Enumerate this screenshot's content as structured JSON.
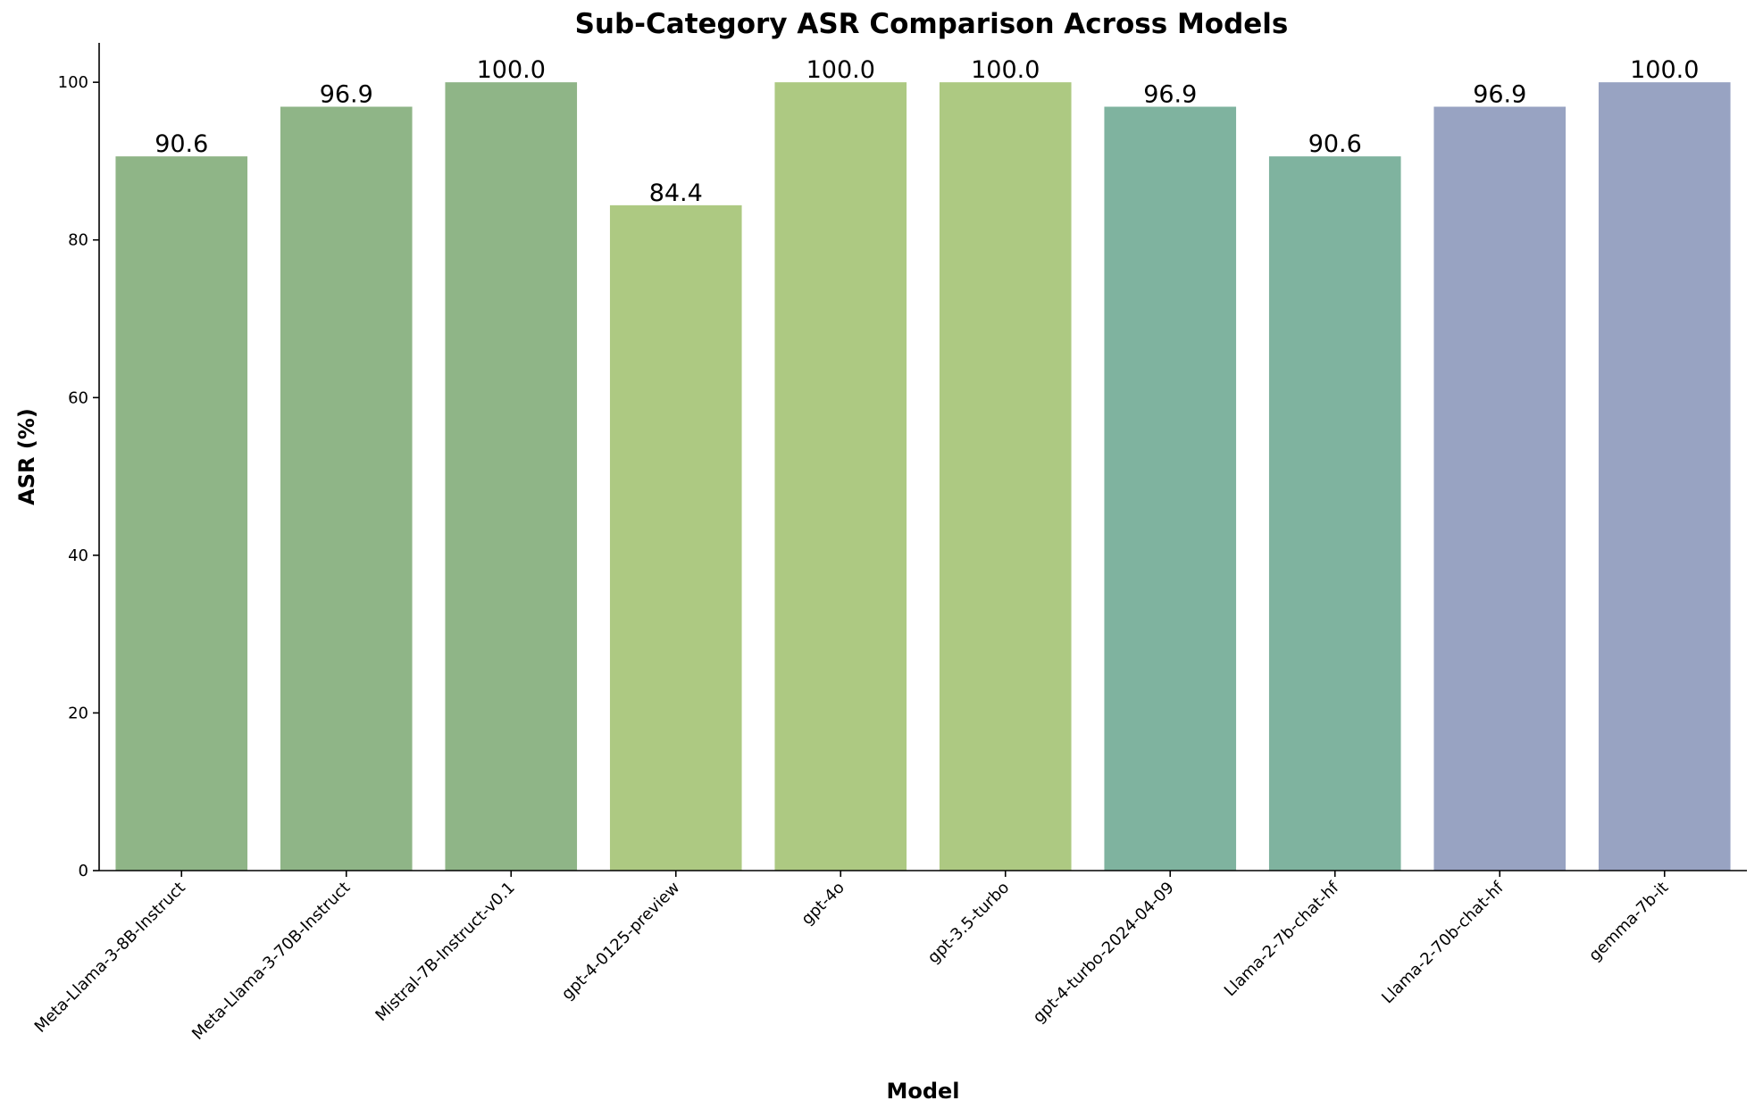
{
  "chart_data": {
    "type": "bar",
    "title": "Sub-Category ASR Comparison Across Models",
    "xlabel": "Model",
    "ylabel": "ASR (%)",
    "ylim": [
      0,
      105
    ],
    "yticks": [
      0,
      20,
      40,
      60,
      80,
      100
    ],
    "grid": false,
    "legend": "none",
    "categories": [
      "Meta-Llama-3-8B-Instruct",
      "Meta-Llama-3-70B-Instruct",
      "Mistral-7B-Instruct-v0.1",
      "gpt-4-0125-preview",
      "gpt-4o",
      "gpt-3.5-turbo",
      "gpt-4-turbo-2024-04-09",
      "Llama-2-7b-chat-hf",
      "Llama-2-70b-chat-hf",
      "gemma-7b-it"
    ],
    "values": [
      90.6,
      96.9,
      100.0,
      84.4,
      100.0,
      100.0,
      96.9,
      90.6,
      96.9,
      100.0
    ],
    "data_labels": [
      "90.6",
      "96.9",
      "100.0",
      "84.4",
      "100.0",
      "100.0",
      "96.9",
      "90.6",
      "96.9",
      "100.0"
    ],
    "colors": [
      "#8fb587",
      "#8fb587",
      "#8fb587",
      "#adc982",
      "#adc982",
      "#adc982",
      "#7fb39f",
      "#7fb39f",
      "#98a3c2",
      "#98a3c2"
    ]
  }
}
